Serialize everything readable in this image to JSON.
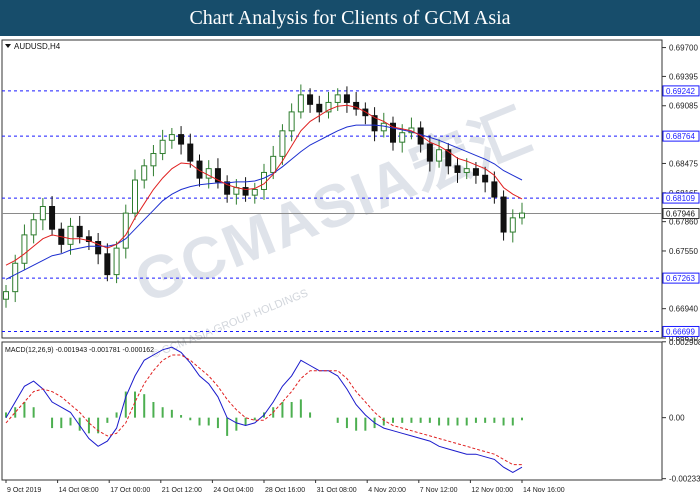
{
  "banner": {
    "title": "Chart Analysis for Clients of GCM Asia"
  },
  "watermark": {
    "text": "GCMASIA宏汇",
    "sub": "© GCM ASIA GROUP HOLDINGS"
  },
  "colors": {
    "banner": "#174d6b",
    "bull": "#2f7d2f",
    "bear": "#111111",
    "ma_fast": "#e02020",
    "ma_slow": "#1d2fd0",
    "levels": "#1a1aff",
    "macd_line": "#1a1acc",
    "signal": "#e02020",
    "histogram": "#4caf50"
  },
  "chart_data": [
    {
      "type": "candlestick",
      "title": "AUDUSD,H4",
      "ylim": [
        0.6663,
        0.6978
      ],
      "y_ticks": [
        "0.69700",
        "0.69395",
        "0.69085",
        "0.68475",
        "0.68165",
        "0.67860",
        "0.67550",
        "0.66940",
        "0.66630"
      ],
      "x_labels": [
        "9 Oct 2019",
        "14 Oct 08:00",
        "17 Oct 00:00",
        "21 Oct 12:00",
        "24 Oct 04:00",
        "28 Oct 16:00",
        "31 Oct 08:00",
        "4 Nov 20:00",
        "7 Nov 12:00",
        "12 Nov 00:00",
        "14 Nov 16:00"
      ],
      "levels": [
        {
          "label": "0.69242",
          "value": 0.69242
        },
        {
          "label": "0.68764",
          "value": 0.68764
        },
        {
          "label": "0.68109",
          "value": 0.68109
        },
        {
          "label": "0.67263",
          "value": 0.67263
        },
        {
          "label": "0.66699",
          "value": 0.66699
        }
      ],
      "current_price": {
        "label": "0.67946",
        "value": 0.67946
      },
      "close": [
        0.6712,
        0.6742,
        0.6772,
        0.6788,
        0.6802,
        0.6778,
        0.6762,
        0.6781,
        0.677,
        0.6765,
        0.6752,
        0.673,
        0.6758,
        0.6795,
        0.683,
        0.6845,
        0.6858,
        0.6872,
        0.6878,
        0.6868,
        0.685,
        0.6832,
        0.6842,
        0.6828,
        0.6815,
        0.6822,
        0.6814,
        0.682,
        0.6838,
        0.6855,
        0.6882,
        0.6902,
        0.692,
        0.691,
        0.6902,
        0.6912,
        0.692,
        0.6912,
        0.6905,
        0.6898,
        0.6882,
        0.689,
        0.687,
        0.688,
        0.6885,
        0.6868,
        0.685,
        0.6862,
        0.6845,
        0.6838,
        0.6842,
        0.6835,
        0.6828,
        0.6812,
        0.6775,
        0.679,
        0.6795
      ],
      "ma_fast": [
        0.674,
        0.6745,
        0.6752,
        0.676,
        0.6768,
        0.6772,
        0.677,
        0.6768,
        0.6768,
        0.6766,
        0.6762,
        0.6758,
        0.6762,
        0.6772,
        0.679,
        0.6805,
        0.682,
        0.6832,
        0.6842,
        0.6848,
        0.6847,
        0.684,
        0.6835,
        0.683,
        0.6825,
        0.6822,
        0.682,
        0.6821,
        0.6826,
        0.6836,
        0.685,
        0.6866,
        0.6882,
        0.6892,
        0.6898,
        0.6904,
        0.6908,
        0.6909,
        0.6907,
        0.6902,
        0.6896,
        0.6892,
        0.6886,
        0.6884,
        0.6882,
        0.6877,
        0.687,
        0.6866,
        0.686,
        0.6853,
        0.685,
        0.6846,
        0.6842,
        0.6835,
        0.6822,
        0.6815,
        0.681
      ],
      "ma_slow": [
        0.6725,
        0.673,
        0.6735,
        0.674,
        0.6745,
        0.675,
        0.6752,
        0.6756,
        0.6758,
        0.676,
        0.676,
        0.676,
        0.6762,
        0.6768,
        0.6778,
        0.6788,
        0.6798,
        0.6808,
        0.6815,
        0.682,
        0.6823,
        0.6825,
        0.6826,
        0.6827,
        0.6827,
        0.6828,
        0.6828,
        0.6829,
        0.6832,
        0.6837,
        0.6844,
        0.6852,
        0.686,
        0.6867,
        0.6872,
        0.6877,
        0.6882,
        0.6886,
        0.6888,
        0.6888,
        0.6888,
        0.6887,
        0.6885,
        0.6883,
        0.6881,
        0.6878,
        0.6875,
        0.6872,
        0.6868,
        0.6864,
        0.686,
        0.6856,
        0.6852,
        0.6847,
        0.684,
        0.6835,
        0.683
      ]
    },
    {
      "type": "macd",
      "title": "MACD(12,26,9) -0.001943 -0.001781 -0.000162",
      "ylim": [
        -0.00239,
        0.0029
      ],
      "y_ticks": [
        "0.002908",
        "0.00",
        "-0.002339"
      ],
      "macd": [
        0.0,
        0.0006,
        0.0012,
        0.0014,
        0.0011,
        0.0006,
        0.0004,
        0.0002,
        -0.0003,
        -0.0008,
        -0.0011,
        -0.0009,
        -0.0004,
        0.0008,
        0.0016,
        0.0022,
        0.0024,
        0.0026,
        0.0027,
        0.0025,
        0.0021,
        0.0016,
        0.0013,
        0.0008,
        0.0,
        -0.0002,
        -0.0003,
        -0.0002,
        0.0001,
        0.0006,
        0.0012,
        0.0016,
        0.0022,
        0.002,
        0.0018,
        0.0018,
        0.0016,
        0.0011,
        0.0005,
        0.0001,
        -0.0002,
        -0.0004,
        -0.0005,
        -0.0006,
        -0.0007,
        -0.0008,
        -0.0009,
        -0.0011,
        -0.0012,
        -0.0013,
        -0.0014,
        -0.0014,
        -0.0015,
        -0.0016,
        -0.0019,
        -0.0021,
        -0.0019
      ],
      "signal": [
        -0.0002,
        0.0002,
        0.0006,
        0.001,
        0.0011,
        0.001,
        0.0008,
        0.0005,
        0.0002,
        -0.0002,
        -0.0005,
        -0.0007,
        -0.0006,
        -0.0002,
        0.0006,
        0.0013,
        0.0018,
        0.0022,
        0.0024,
        0.0024,
        0.0022,
        0.0019,
        0.0016,
        0.0012,
        0.0007,
        0.0003,
        0.0,
        -0.0001,
        -0.0001,
        0.0002,
        0.0006,
        0.001,
        0.0015,
        0.0018,
        0.0018,
        0.0018,
        0.0018,
        0.0015,
        0.001,
        0.0006,
        0.0002,
        -0.0001,
        -0.0003,
        -0.0004,
        -0.0005,
        -0.0006,
        -0.0007,
        -0.0008,
        -0.0009,
        -0.001,
        -0.0011,
        -0.0012,
        -0.0013,
        -0.0014,
        -0.0016,
        -0.0018,
        -0.0018
      ]
    }
  ]
}
